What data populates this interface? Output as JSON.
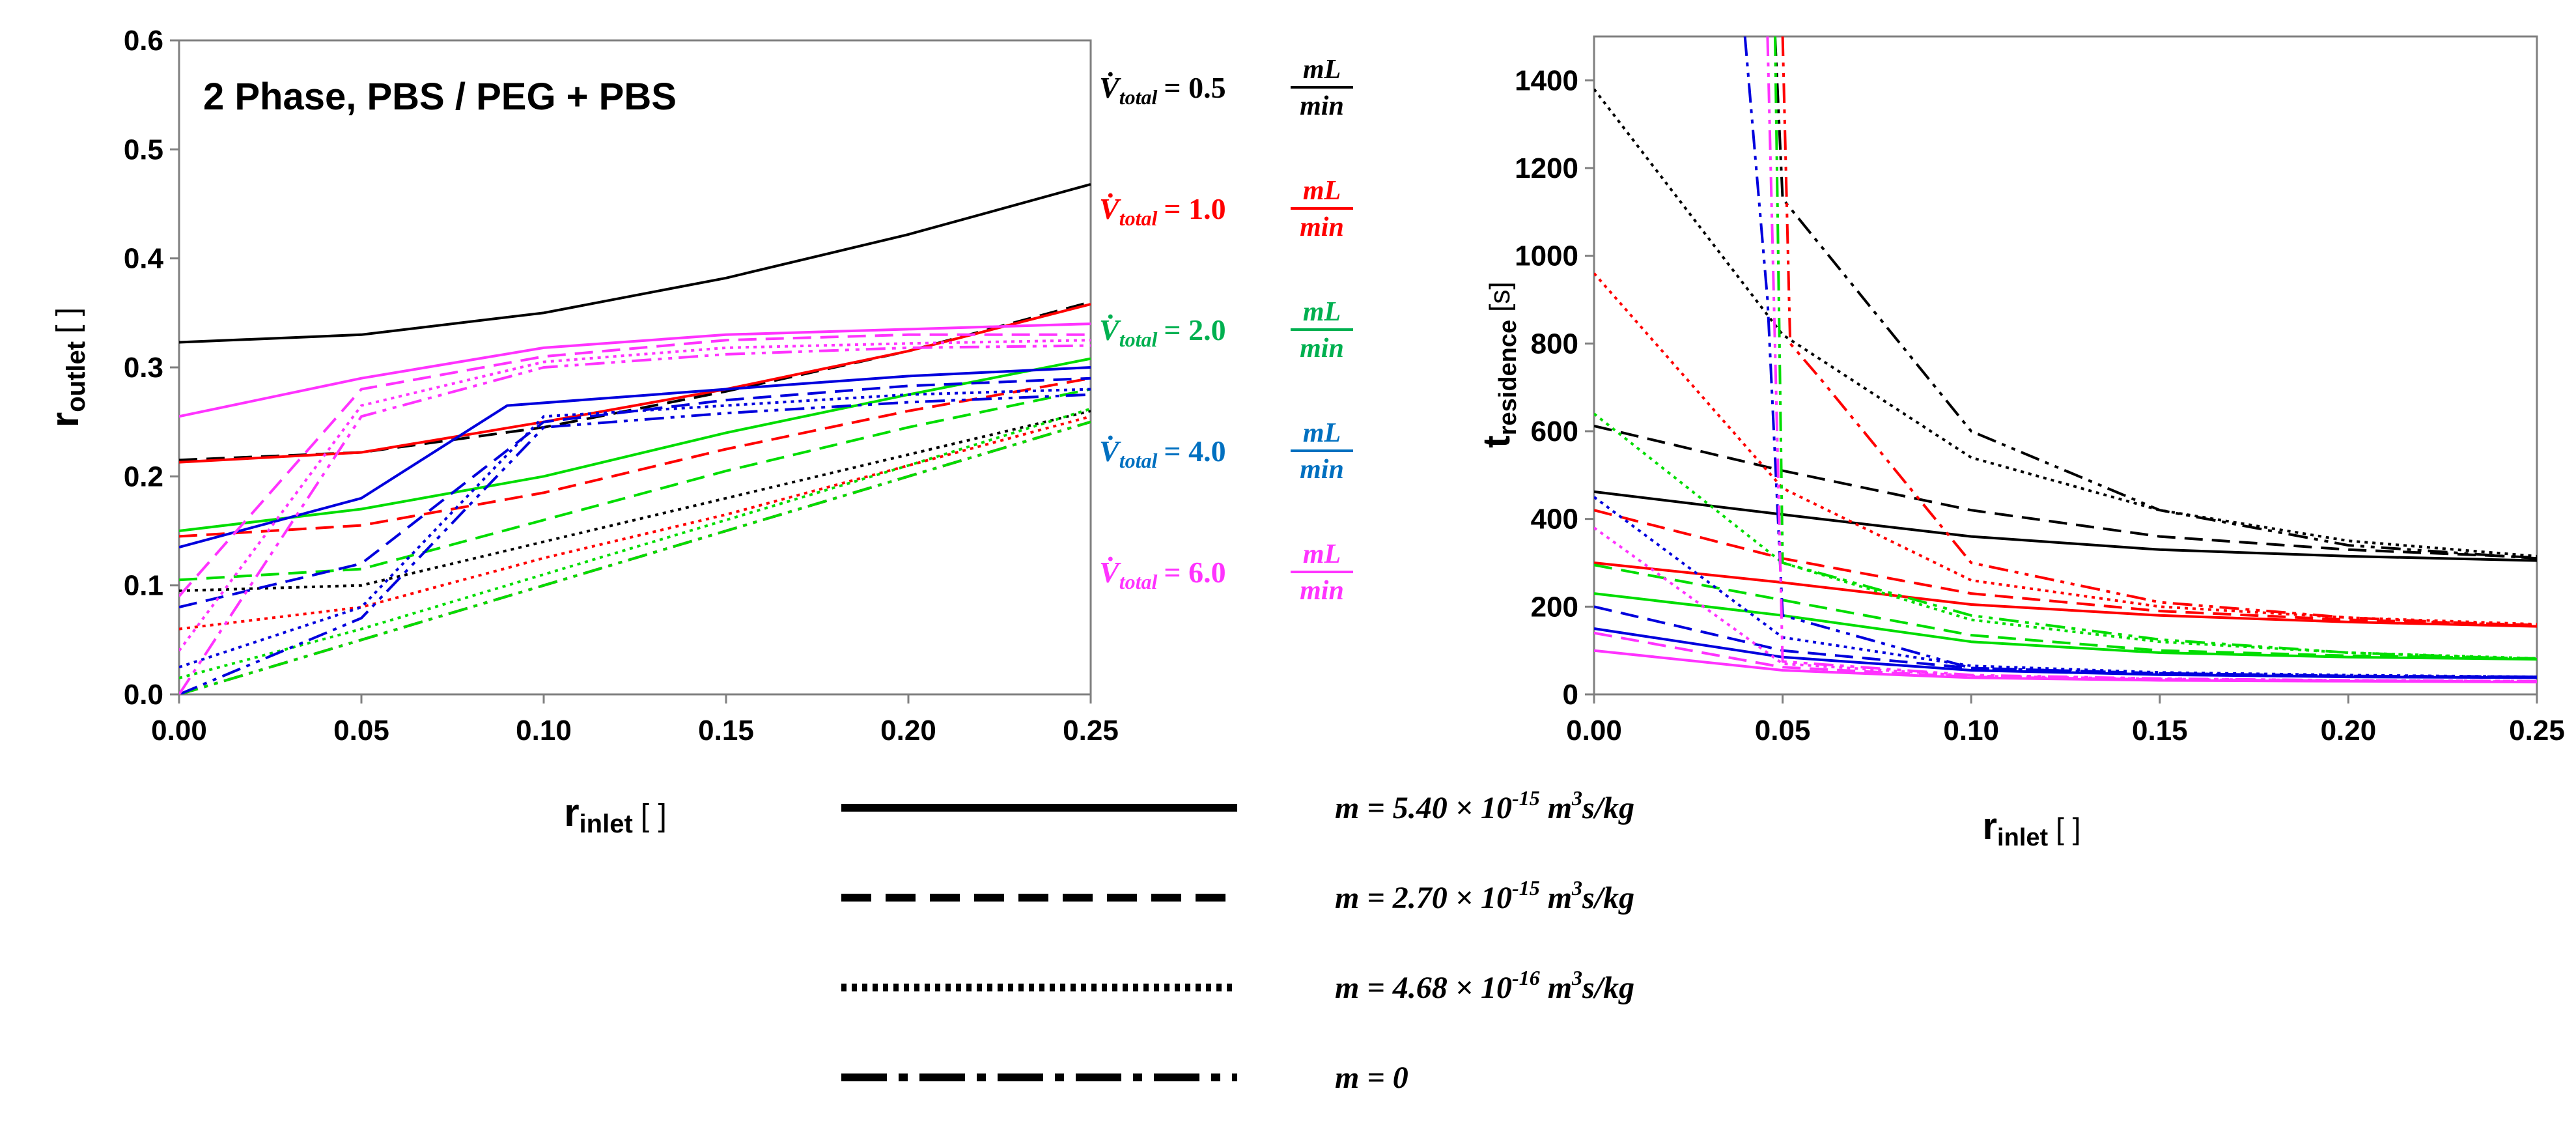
{
  "chart_data": [
    {
      "type": "line",
      "panel": "left",
      "title": "2 Phase, PBS / PEG + PBS",
      "xlabel": "r",
      "xlabel_sub": "inlet",
      "xlabel_unit": "[ ]",
      "ylabel": "r",
      "ylabel_sub": "outlet",
      "ylabel_unit": "[ ]",
      "xlim": [
        0,
        0.25
      ],
      "ylim": [
        0,
        0.6
      ],
      "xticks": [
        "0.00",
        "0.05",
        "0.10",
        "0.15",
        "0.20",
        "0.25"
      ],
      "yticks": [
        "0.0",
        "0.1",
        "0.2",
        "0.3",
        "0.4",
        "0.5",
        "0.6"
      ],
      "grid": false,
      "series": [
        {
          "name": "0.5 mL/min, m=5.40e-15",
          "color": "#000000",
          "style": "solid",
          "x": [
            0,
            0.05,
            0.1,
            0.15,
            0.2,
            0.25
          ],
          "y": [
            0.323,
            0.33,
            0.35,
            0.382,
            0.422,
            0.468
          ]
        },
        {
          "name": "0.5 mL/min, m=2.70e-15",
          "color": "#000000",
          "style": "dashed",
          "x": [
            0,
            0.05,
            0.1,
            0.15,
            0.2,
            0.25
          ],
          "y": [
            0.215,
            0.222,
            0.245,
            0.278,
            0.315,
            0.36
          ]
        },
        {
          "name": "0.5 mL/min, m=4.68e-16",
          "color": "#000000",
          "style": "dotted",
          "x": [
            0,
            0.05,
            0.1,
            0.15,
            0.2,
            0.25
          ],
          "y": [
            0.095,
            0.1,
            0.14,
            0.18,
            0.22,
            0.26
          ]
        },
        {
          "name": "0.5 mL/min, m=0",
          "color": "#000000",
          "style": "dashdot",
          "x": [
            0,
            0.05,
            0.1,
            0.15,
            0.2,
            0.25
          ],
          "y": [
            0.0,
            0.05,
            0.1,
            0.15,
            0.2,
            0.25
          ]
        },
        {
          "name": "1.0 mL/min, m=5.40e-15",
          "color": "#ff0000",
          "style": "solid",
          "x": [
            0,
            0.05,
            0.1,
            0.15,
            0.2,
            0.25
          ],
          "y": [
            0.213,
            0.222,
            0.25,
            0.28,
            0.315,
            0.358
          ]
        },
        {
          "name": "1.0 mL/min, m=2.70e-15",
          "color": "#ff0000",
          "style": "dashed",
          "x": [
            0,
            0.05,
            0.1,
            0.15,
            0.2,
            0.25
          ],
          "y": [
            0.145,
            0.155,
            0.185,
            0.225,
            0.26,
            0.29
          ]
        },
        {
          "name": "1.0 mL/min, m=4.68e-16",
          "color": "#ff0000",
          "style": "dotted",
          "x": [
            0,
            0.05,
            0.1,
            0.15,
            0.2,
            0.25
          ],
          "y": [
            0.06,
            0.08,
            0.125,
            0.165,
            0.21,
            0.255
          ]
        },
        {
          "name": "1.0 mL/min, m=0",
          "color": "#ff0000",
          "style": "dashdot",
          "x": [
            0,
            0.05,
            0.1,
            0.15,
            0.2,
            0.25
          ],
          "y": [
            0.0,
            0.05,
            0.1,
            0.15,
            0.2,
            0.25
          ]
        },
        {
          "name": "2.0 mL/min, m=5.40e-15",
          "color": "#00dd00",
          "style": "solid",
          "x": [
            0,
            0.05,
            0.1,
            0.15,
            0.2,
            0.25
          ],
          "y": [
            0.15,
            0.17,
            0.2,
            0.24,
            0.275,
            0.308
          ]
        },
        {
          "name": "2.0 mL/min, m=2.70e-15",
          "color": "#00dd00",
          "style": "dashed",
          "x": [
            0,
            0.05,
            0.1,
            0.15,
            0.2,
            0.25
          ],
          "y": [
            0.105,
            0.115,
            0.16,
            0.205,
            0.245,
            0.28
          ]
        },
        {
          "name": "2.0 mL/min, m=4.68e-16",
          "color": "#00dd00",
          "style": "dotted",
          "x": [
            0,
            0.05,
            0.1,
            0.15,
            0.2,
            0.25
          ],
          "y": [
            0.015,
            0.06,
            0.11,
            0.16,
            0.21,
            0.262
          ]
        },
        {
          "name": "2.0 mL/min, m=0",
          "color": "#00dd00",
          "style": "dashdot",
          "x": [
            0,
            0.05,
            0.1,
            0.15,
            0.2,
            0.25
          ],
          "y": [
            0.0,
            0.05,
            0.1,
            0.15,
            0.2,
            0.25
          ]
        },
        {
          "name": "4.0 mL/min, m=5.40e-15",
          "color": "#0000dd",
          "style": "solid",
          "x": [
            0,
            0.05,
            0.09,
            0.15,
            0.2,
            0.25
          ],
          "y": [
            0.135,
            0.18,
            0.265,
            0.28,
            0.292,
            0.3
          ]
        },
        {
          "name": "4.0 mL/min, m=2.70e-15",
          "color": "#0000dd",
          "style": "dashed",
          "x": [
            0,
            0.05,
            0.1,
            0.15,
            0.2,
            0.25
          ],
          "y": [
            0.08,
            0.12,
            0.25,
            0.27,
            0.283,
            0.29
          ]
        },
        {
          "name": "4.0 mL/min, m=4.68e-16",
          "color": "#0000dd",
          "style": "dotted",
          "x": [
            0,
            0.05,
            0.1,
            0.15,
            0.2,
            0.25
          ],
          "y": [
            0.025,
            0.08,
            0.255,
            0.265,
            0.275,
            0.28
          ]
        },
        {
          "name": "4.0 mL/min, m=0",
          "color": "#0000dd",
          "style": "dashdot",
          "x": [
            0,
            0.05,
            0.1,
            0.15,
            0.2,
            0.25
          ],
          "y": [
            0.0,
            0.07,
            0.245,
            0.258,
            0.268,
            0.275
          ]
        },
        {
          "name": "6.0 mL/min, m=5.40e-15",
          "color": "#ff33ff",
          "style": "solid",
          "x": [
            0,
            0.05,
            0.1,
            0.15,
            0.2,
            0.25
          ],
          "y": [
            0.255,
            0.29,
            0.318,
            0.33,
            0.335,
            0.34
          ]
        },
        {
          "name": "6.0 mL/min, m=2.70e-15",
          "color": "#ff33ff",
          "style": "dashed",
          "x": [
            0,
            0.05,
            0.1,
            0.15,
            0.2,
            0.25
          ],
          "y": [
            0.09,
            0.28,
            0.31,
            0.325,
            0.33,
            0.33
          ]
        },
        {
          "name": "6.0 mL/min, m=4.68e-16",
          "color": "#ff33ff",
          "style": "dotted",
          "x": [
            0,
            0.05,
            0.1,
            0.15,
            0.2,
            0.25
          ],
          "y": [
            0.04,
            0.265,
            0.305,
            0.318,
            0.322,
            0.325
          ]
        },
        {
          "name": "6.0 mL/min, m=0",
          "color": "#ff33ff",
          "style": "dashdot",
          "x": [
            0,
            0.05,
            0.1,
            0.15,
            0.2,
            0.25
          ],
          "y": [
            0.0,
            0.255,
            0.3,
            0.312,
            0.318,
            0.32
          ]
        }
      ]
    },
    {
      "type": "line",
      "panel": "right",
      "xlabel": "r",
      "xlabel_sub": "inlet",
      "xlabel_unit": "[ ]",
      "ylabel": "t",
      "ylabel_sub": "residence",
      "ylabel_unit": "[s]",
      "xlim": [
        0,
        0.25
      ],
      "ylim": [
        0,
        1500
      ],
      "xticks": [
        "0.00",
        "0.05",
        "0.10",
        "0.15",
        "0.20",
        "0.25"
      ],
      "yticks": [
        "0",
        "200",
        "400",
        "600",
        "800",
        "1000",
        "1200",
        "1400"
      ],
      "grid": false,
      "series": [
        {
          "name": "0.5 mL/min, m=5.40e-15",
          "color": "#000000",
          "style": "solid",
          "x": [
            0,
            0.05,
            0.1,
            0.15,
            0.2,
            0.25
          ],
          "y": [
            462,
            410,
            360,
            330,
            315,
            305
          ]
        },
        {
          "name": "0.5 mL/min, m=2.70e-15",
          "color": "#000000",
          "style": "dashed",
          "x": [
            0,
            0.05,
            0.1,
            0.15,
            0.2,
            0.25
          ],
          "y": [
            612,
            510,
            420,
            360,
            330,
            312
          ]
        },
        {
          "name": "0.5 mL/min, m=4.68e-16",
          "color": "#000000",
          "style": "dotted",
          "x": [
            0,
            0.05,
            0.1,
            0.15,
            0.2,
            0.25
          ],
          "y": [
            1380,
            820,
            540,
            420,
            350,
            315
          ]
        },
        {
          "name": "0.5 mL/min, m=0",
          "color": "#000000",
          "style": "dashdot",
          "x": [
            0.048,
            0.05,
            0.1,
            0.15,
            0.2,
            0.25
          ],
          "y": [
            1500,
            1130,
            600,
            420,
            340,
            310
          ]
        },
        {
          "name": "1.0 mL/min, m=5.40e-15",
          "color": "#ff0000",
          "style": "solid",
          "x": [
            0,
            0.05,
            0.1,
            0.15,
            0.2,
            0.25
          ],
          "y": [
            300,
            255,
            205,
            180,
            165,
            155
          ]
        },
        {
          "name": "1.0 mL/min, m=2.70e-15",
          "color": "#ff0000",
          "style": "dashed",
          "x": [
            0,
            0.05,
            0.1,
            0.15,
            0.2,
            0.25
          ],
          "y": [
            420,
            310,
            230,
            190,
            170,
            158
          ]
        },
        {
          "name": "1.0 mL/min, m=4.68e-16",
          "color": "#ff0000",
          "style": "dotted",
          "x": [
            0,
            0.05,
            0.1,
            0.15,
            0.2,
            0.25
          ],
          "y": [
            960,
            470,
            260,
            200,
            175,
            160
          ]
        },
        {
          "name": "1.0 mL/min, m=0",
          "color": "#ff0000",
          "style": "dashdot",
          "x": [
            0.05,
            0.052,
            0.06,
            0.1,
            0.15,
            0.2,
            0.25
          ],
          "y": [
            1500,
            800,
            720,
            300,
            210,
            175,
            155
          ]
        },
        {
          "name": "2.0 mL/min, m=5.40e-15",
          "color": "#00dd00",
          "style": "solid",
          "x": [
            0,
            0.05,
            0.1,
            0.15,
            0.2,
            0.25
          ],
          "y": [
            230,
            180,
            120,
            95,
            85,
            80
          ]
        },
        {
          "name": "2.0 mL/min, m=2.70e-15",
          "color": "#00dd00",
          "style": "dashed",
          "x": [
            0,
            0.05,
            0.1,
            0.15,
            0.2,
            0.25
          ],
          "y": [
            295,
            215,
            135,
            100,
            88,
            82
          ]
        },
        {
          "name": "2.0 mL/min, m=4.68e-16",
          "color": "#00dd00",
          "style": "dotted",
          "x": [
            0,
            0.05,
            0.1,
            0.15,
            0.2,
            0.25
          ],
          "y": [
            640,
            300,
            170,
            120,
            95,
            82
          ]
        },
        {
          "name": "2.0 mL/min, m=0",
          "color": "#00dd00",
          "style": "dashdot",
          "x": [
            0.048,
            0.05,
            0.1,
            0.15,
            0.2,
            0.25
          ],
          "y": [
            1500,
            300,
            180,
            125,
            95,
            80
          ]
        },
        {
          "name": "4.0 mL/min, m=5.40e-15",
          "color": "#0000dd",
          "style": "solid",
          "x": [
            0,
            0.05,
            0.1,
            0.15,
            0.2,
            0.25
          ],
          "y": [
            150,
            85,
            55,
            45,
            40,
            38
          ]
        },
        {
          "name": "4.0 mL/min, m=2.70e-15",
          "color": "#0000dd",
          "style": "dashed",
          "x": [
            0,
            0.05,
            0.1,
            0.15,
            0.2,
            0.25
          ],
          "y": [
            200,
            100,
            60,
            48,
            42,
            40
          ]
        },
        {
          "name": "4.0 mL/min, m=4.68e-16",
          "color": "#0000dd",
          "style": "dotted",
          "x": [
            0,
            0.05,
            0.1,
            0.15,
            0.2,
            0.25
          ],
          "y": [
            450,
            130,
            65,
            50,
            44,
            40
          ]
        },
        {
          "name": "4.0 mL/min, m=0",
          "color": "#0000dd",
          "style": "dashdot",
          "x": [
            0.04,
            0.046,
            0.05,
            0.1,
            0.15,
            0.2,
            0.25
          ],
          "y": [
            1500,
            900,
            180,
            60,
            48,
            42,
            40
          ]
        },
        {
          "name": "6.0 mL/min, m=5.40e-15",
          "color": "#ff33ff",
          "style": "solid",
          "x": [
            0,
            0.05,
            0.1,
            0.15,
            0.2,
            0.25
          ],
          "y": [
            100,
            55,
            38,
            32,
            30,
            28
          ]
        },
        {
          "name": "6.0 mL/min, m=2.70e-15",
          "color": "#ff33ff",
          "style": "dashed",
          "x": [
            0,
            0.05,
            0.1,
            0.15,
            0.2,
            0.25
          ],
          "y": [
            140,
            62,
            40,
            34,
            31,
            29
          ]
        },
        {
          "name": "6.0 mL/min, m=4.68e-16",
          "color": "#ff33ff",
          "style": "dotted",
          "x": [
            0,
            0.05,
            0.1,
            0.15,
            0.2,
            0.25
          ],
          "y": [
            380,
            70,
            42,
            35,
            32,
            30
          ]
        },
        {
          "name": "6.0 mL/min, m=0",
          "color": "#ff33ff",
          "style": "dashdot",
          "x": [
            0.046,
            0.05,
            0.1,
            0.15,
            0.2,
            0.25
          ],
          "y": [
            1500,
            75,
            44,
            36,
            32,
            30
          ]
        }
      ]
    }
  ],
  "flow_legend": {
    "symbol": "V̇",
    "sub": "total",
    "unit_num": "mL",
    "unit_den": "min",
    "entries": [
      {
        "value": "= 0.5",
        "color": "#000000"
      },
      {
        "value": "= 1.0",
        "color": "#ff0000"
      },
      {
        "value": "= 2.0",
        "color": "#00b050"
      },
      {
        "value": "= 4.0",
        "color": "#0070c0"
      },
      {
        "value": "= 6.0",
        "color": "#ff33ff"
      }
    ]
  },
  "line_legend": {
    "entries": [
      {
        "style": "solid",
        "prefix": "m = 5.40 × 10",
        "exp": "-15",
        "unit_m": " m",
        "unit_exp": "3",
        "unit_rest": "s/kg"
      },
      {
        "style": "dashed",
        "prefix": "m = 2.70 × 10",
        "exp": "-15",
        "unit_m": " m",
        "unit_exp": "3",
        "unit_rest": "s/kg"
      },
      {
        "style": "dotted",
        "prefix": "m = 4.68 × 10",
        "exp": "-16",
        "unit_m": " m",
        "unit_exp": "3",
        "unit_rest": "s/kg"
      },
      {
        "style": "dashdot",
        "prefix": "m = 0",
        "exp": "",
        "unit_m": "",
        "unit_exp": "",
        "unit_rest": ""
      }
    ]
  }
}
